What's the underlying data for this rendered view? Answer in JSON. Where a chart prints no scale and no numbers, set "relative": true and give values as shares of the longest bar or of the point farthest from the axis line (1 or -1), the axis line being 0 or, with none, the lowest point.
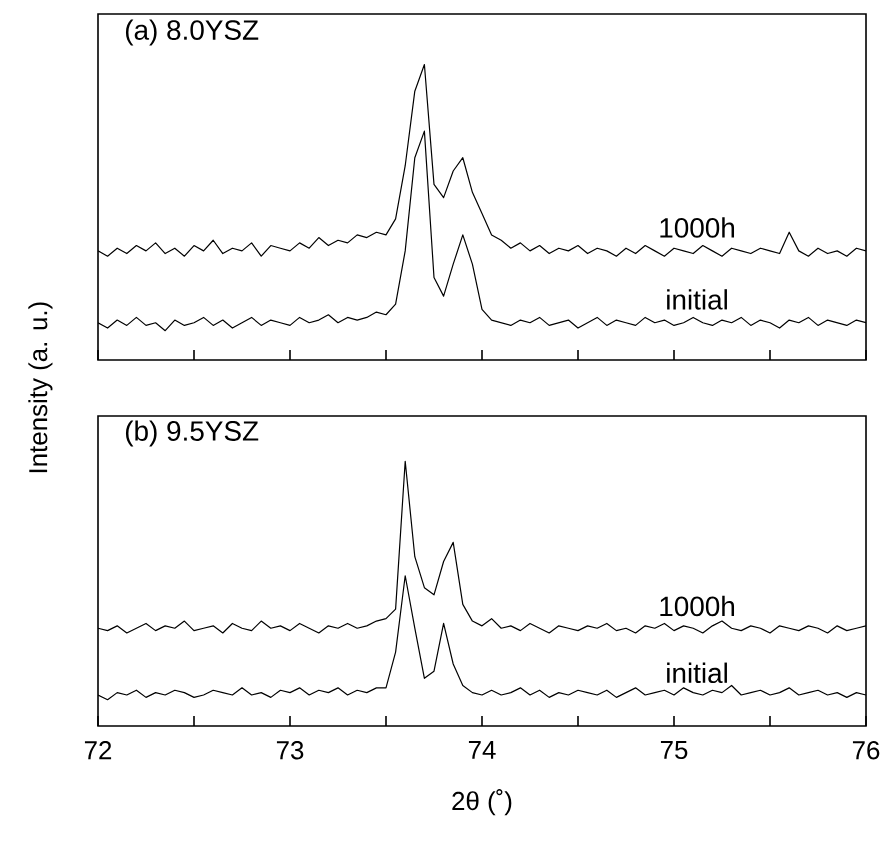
{
  "chart_data": [
    {
      "type": "line",
      "title": "(a) 8.0YSZ",
      "ylabel": "Intensity (a. u.)",
      "relative": true,
      "tick_labels": false,
      "marker": "none",
      "legend": false,
      "grid": false,
      "xlim": [
        72,
        76
      ],
      "xticks": [
        72,
        {
          "value": 72.5,
          "label": null
        },
        73,
        {
          "value": 73.5,
          "label": null
        },
        74,
        {
          "value": 74.5,
          "label": null
        },
        75,
        {
          "value": 75.5,
          "label": null
        },
        76
      ],
      "x": [
        72.0,
        72.05,
        72.1,
        72.15,
        72.2,
        72.25,
        72.3,
        72.35,
        72.4,
        72.45,
        72.5,
        72.55,
        72.6,
        72.65,
        72.7,
        72.75,
        72.8,
        72.85,
        72.9,
        72.95,
        73.0,
        73.05,
        73.1,
        73.15,
        73.2,
        73.25,
        73.3,
        73.35,
        73.4,
        73.45,
        73.5,
        73.55,
        73.6,
        73.65,
        73.7,
        73.75,
        73.8,
        73.85,
        73.9,
        73.95,
        74.0,
        74.05,
        74.1,
        74.15,
        74.2,
        74.25,
        74.3,
        74.35,
        74.4,
        74.45,
        74.5,
        74.55,
        74.6,
        74.65,
        74.7,
        74.75,
        74.8,
        74.85,
        74.9,
        74.95,
        75.0,
        75.05,
        75.1,
        75.15,
        75.2,
        75.25,
        75.3,
        75.35,
        75.4,
        75.45,
        75.5,
        75.55,
        75.6,
        75.65,
        75.7,
        75.75,
        75.8,
        75.85,
        75.9,
        75.95,
        76.0
      ],
      "series": [
        {
          "name": "1000h",
          "color": "#000000",
          "values": [
            0.3,
            0.28,
            0.31,
            0.29,
            0.32,
            0.3,
            0.33,
            0.29,
            0.31,
            0.28,
            0.32,
            0.3,
            0.34,
            0.29,
            0.31,
            0.3,
            0.33,
            0.28,
            0.32,
            0.31,
            0.3,
            0.33,
            0.31,
            0.35,
            0.32,
            0.34,
            0.33,
            0.36,
            0.35,
            0.37,
            0.36,
            0.42,
            0.62,
            0.9,
            1.0,
            0.55,
            0.5,
            0.6,
            0.65,
            0.52,
            0.44,
            0.36,
            0.34,
            0.31,
            0.33,
            0.3,
            0.32,
            0.29,
            0.31,
            0.3,
            0.32,
            0.29,
            0.31,
            0.3,
            0.28,
            0.31,
            0.29,
            0.32,
            0.3,
            0.28,
            0.31,
            0.3,
            0.29,
            0.32,
            0.3,
            0.28,
            0.31,
            0.3,
            0.29,
            0.31,
            0.3,
            0.29,
            0.37,
            0.3,
            0.28,
            0.31,
            0.29,
            0.3,
            0.28,
            0.31,
            0.3
          ]
        },
        {
          "name": "initial",
          "color": "#000000",
          "values": [
            0.03,
            0.01,
            0.04,
            0.02,
            0.05,
            0.02,
            0.03,
            0.0,
            0.04,
            0.02,
            0.03,
            0.05,
            0.02,
            0.04,
            0.01,
            0.03,
            0.05,
            0.02,
            0.04,
            0.03,
            0.02,
            0.05,
            0.03,
            0.04,
            0.06,
            0.03,
            0.05,
            0.04,
            0.05,
            0.07,
            0.06,
            0.1,
            0.3,
            0.65,
            0.75,
            0.2,
            0.13,
            0.25,
            0.36,
            0.25,
            0.08,
            0.04,
            0.03,
            0.02,
            0.04,
            0.03,
            0.05,
            0.02,
            0.03,
            0.04,
            0.01,
            0.03,
            0.05,
            0.02,
            0.04,
            0.03,
            0.02,
            0.05,
            0.03,
            0.04,
            0.02,
            0.03,
            0.05,
            0.03,
            0.02,
            0.04,
            0.03,
            0.05,
            0.02,
            0.04,
            0.03,
            0.01,
            0.04,
            0.03,
            0.05,
            0.02,
            0.04,
            0.03,
            0.02,
            0.04,
            0.03
          ]
        }
      ]
    },
    {
      "type": "line",
      "title": "(b) 9.5YSZ",
      "xlabel": "2θ (˚)",
      "relative": true,
      "tick_labels": "x",
      "marker": "none",
      "legend": false,
      "grid": false,
      "xlim": [
        72,
        76
      ],
      "xticks": [
        72,
        {
          "value": 72.5,
          "label": null
        },
        73,
        {
          "value": 73.5,
          "label": null
        },
        74,
        {
          "value": 74.5,
          "label": null
        },
        75,
        {
          "value": 75.5,
          "label": null
        },
        76
      ],
      "x": [
        72.0,
        72.05,
        72.1,
        72.15,
        72.2,
        72.25,
        72.3,
        72.35,
        72.4,
        72.45,
        72.5,
        72.55,
        72.6,
        72.65,
        72.7,
        72.75,
        72.8,
        72.85,
        72.9,
        72.95,
        73.0,
        73.05,
        73.1,
        73.15,
        73.2,
        73.25,
        73.3,
        73.35,
        73.4,
        73.45,
        73.5,
        73.55,
        73.6,
        73.65,
        73.7,
        73.75,
        73.8,
        73.85,
        73.9,
        73.95,
        74.0,
        74.05,
        74.1,
        74.15,
        74.2,
        74.25,
        74.3,
        74.35,
        74.4,
        74.45,
        74.5,
        74.55,
        74.6,
        74.65,
        74.7,
        74.75,
        74.8,
        74.85,
        74.9,
        74.95,
        75.0,
        75.05,
        75.1,
        75.15,
        75.2,
        75.25,
        75.3,
        75.35,
        75.4,
        75.45,
        75.5,
        75.55,
        75.6,
        75.65,
        75.7,
        75.75,
        75.8,
        75.85,
        75.9,
        75.95,
        76.0
      ],
      "series": [
        {
          "name": "1000h",
          "color": "#000000",
          "values": [
            0.3,
            0.29,
            0.31,
            0.28,
            0.3,
            0.32,
            0.29,
            0.31,
            0.3,
            0.33,
            0.29,
            0.3,
            0.31,
            0.28,
            0.32,
            0.3,
            0.29,
            0.33,
            0.3,
            0.31,
            0.29,
            0.32,
            0.3,
            0.28,
            0.31,
            0.3,
            0.32,
            0.3,
            0.31,
            0.33,
            0.34,
            0.38,
            1.0,
            0.6,
            0.47,
            0.44,
            0.58,
            0.66,
            0.4,
            0.33,
            0.31,
            0.34,
            0.3,
            0.31,
            0.29,
            0.32,
            0.3,
            0.28,
            0.31,
            0.3,
            0.29,
            0.31,
            0.3,
            0.32,
            0.29,
            0.3,
            0.28,
            0.31,
            0.3,
            0.32,
            0.29,
            0.31,
            0.3,
            0.28,
            0.31,
            0.33,
            0.3,
            0.29,
            0.31,
            0.3,
            0.28,
            0.31,
            0.3,
            0.29,
            0.31,
            0.3,
            0.28,
            0.31,
            0.29,
            0.3,
            0.31
          ]
        },
        {
          "name": "initial",
          "color": "#000000",
          "values": [
            0.02,
            0.0,
            0.03,
            0.02,
            0.04,
            0.01,
            0.03,
            0.02,
            0.04,
            0.03,
            0.01,
            0.02,
            0.04,
            0.03,
            0.02,
            0.05,
            0.02,
            0.03,
            0.01,
            0.04,
            0.03,
            0.05,
            0.02,
            0.04,
            0.03,
            0.05,
            0.02,
            0.04,
            0.03,
            0.05,
            0.05,
            0.2,
            0.52,
            0.3,
            0.09,
            0.12,
            0.32,
            0.15,
            0.06,
            0.03,
            0.02,
            0.04,
            0.02,
            0.03,
            0.05,
            0.02,
            0.04,
            0.01,
            0.03,
            0.02,
            0.04,
            0.03,
            0.02,
            0.04,
            0.01,
            0.03,
            0.05,
            0.02,
            0.03,
            0.04,
            0.02,
            0.05,
            0.03,
            0.02,
            0.04,
            0.03,
            0.06,
            0.02,
            0.03,
            0.04,
            0.02,
            0.03,
            0.05,
            0.02,
            0.03,
            0.04,
            0.02,
            0.03,
            0.01,
            0.03,
            0.02
          ]
        }
      ]
    }
  ]
}
